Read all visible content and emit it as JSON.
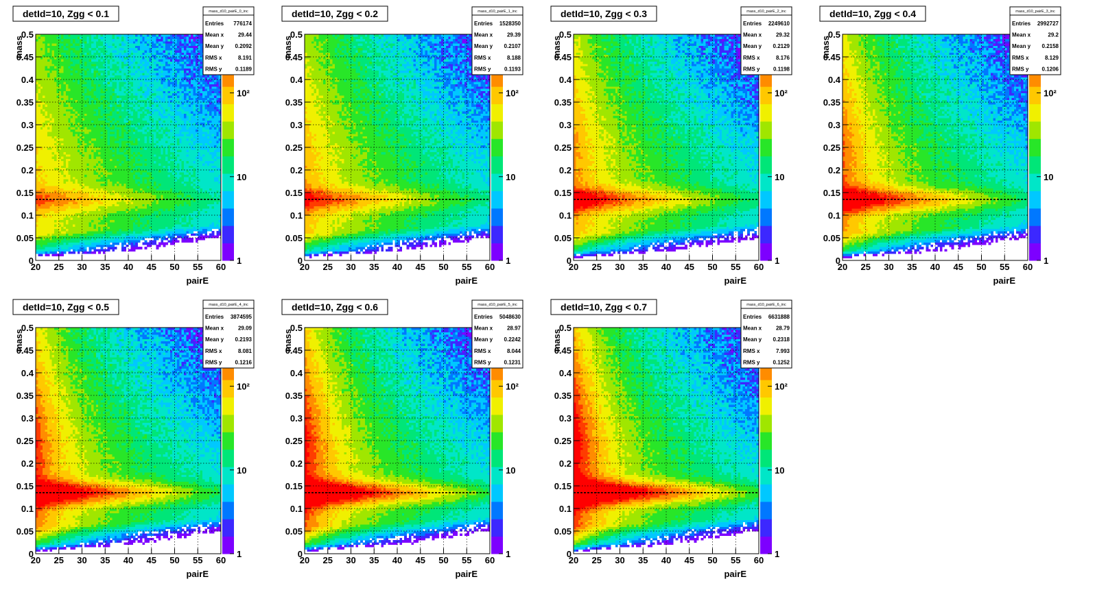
{
  "panel_grid": {
    "rows": 2,
    "cols": 4
  },
  "colors": {
    "palette": [
      "#7d00ff",
      "#3c28ff",
      "#0078ff",
      "#00c8ff",
      "#00e6c8",
      "#00e678",
      "#28e628",
      "#a0e600",
      "#f0f000",
      "#ffc800",
      "#ff8c00",
      "#ff3c00",
      "#ff0000"
    ],
    "empty_bin": "#ffffff",
    "reference_line": "#000000"
  },
  "chart_data": [
    {
      "type": "heatmap",
      "title": "detId=10, Zgg < 0.1",
      "xlabel": "pairE",
      "ylabel": "mass",
      "xlim": [
        20,
        60
      ],
      "ylim": [
        0,
        0.5
      ],
      "x_ticks": [
        "20",
        "25",
        "30",
        "35",
        "40",
        "45",
        "50",
        "55",
        "60"
      ],
      "y_ticks": [
        "0",
        "0.05",
        "0.1",
        "0.15",
        "0.2",
        "0.25",
        "0.3",
        "0.35",
        "0.4",
        "0.45",
        "0.5"
      ],
      "z_scale": "log",
      "z_ticks": [
        "1",
        "10",
        "10²"
      ],
      "reference_line_y": 0.135,
      "grid": true,
      "zgg_level": 0.1,
      "stats": {
        "name": "mass_d10_pairE_0_inc",
        "rows": [
          [
            "Entries",
            "776174"
          ],
          [
            "Mean x",
            "29.44"
          ],
          [
            "Mean y",
            "0.2092"
          ],
          [
            "RMS x",
            "8.191"
          ],
          [
            "RMS y",
            "0.1189"
          ]
        ]
      }
    },
    {
      "type": "heatmap",
      "title": "detId=10, Zgg < 0.2",
      "xlabel": "pairE",
      "ylabel": "mass",
      "xlim": [
        20,
        60
      ],
      "ylim": [
        0,
        0.5
      ],
      "x_ticks": [
        "20",
        "25",
        "30",
        "35",
        "40",
        "45",
        "50",
        "55",
        "60"
      ],
      "y_ticks": [
        "0",
        "0.05",
        "0.1",
        "0.15",
        "0.2",
        "0.25",
        "0.3",
        "0.35",
        "0.4",
        "0.45",
        "0.5"
      ],
      "z_scale": "log",
      "z_ticks": [
        "1",
        "10",
        "10²"
      ],
      "reference_line_y": 0.135,
      "grid": true,
      "zgg_level": 0.2,
      "stats": {
        "name": "mass_d10_pairE_1_inc",
        "rows": [
          [
            "Entries",
            "1528350"
          ],
          [
            "Mean x",
            "29.39"
          ],
          [
            "Mean y",
            "0.2107"
          ],
          [
            "RMS x",
            "8.188"
          ],
          [
            "RMS y",
            "0.1193"
          ]
        ]
      }
    },
    {
      "type": "heatmap",
      "title": "detId=10, Zgg < 0.3",
      "xlabel": "pairE",
      "ylabel": "mass",
      "xlim": [
        20,
        60
      ],
      "ylim": [
        0,
        0.5
      ],
      "x_ticks": [
        "20",
        "25",
        "30",
        "35",
        "40",
        "45",
        "50",
        "55",
        "60"
      ],
      "y_ticks": [
        "0",
        "0.05",
        "0.1",
        "0.15",
        "0.2",
        "0.25",
        "0.3",
        "0.35",
        "0.4",
        "0.45",
        "0.5"
      ],
      "z_scale": "log",
      "z_ticks": [
        "1",
        "10",
        "10²"
      ],
      "reference_line_y": 0.135,
      "grid": true,
      "zgg_level": 0.3,
      "stats": {
        "name": "mass_d10_pairE_2_inc",
        "rows": [
          [
            "Entries",
            "2249610"
          ],
          [
            "Mean x",
            "29.32"
          ],
          [
            "Mean y",
            "0.2129"
          ],
          [
            "RMS x",
            "8.176"
          ],
          [
            "RMS y",
            "0.1198"
          ]
        ]
      }
    },
    {
      "type": "heatmap",
      "title": "detId=10, Zgg < 0.4",
      "xlabel": "pairE",
      "ylabel": "mass",
      "xlim": [
        20,
        60
      ],
      "ylim": [
        0,
        0.5
      ],
      "x_ticks": [
        "20",
        "25",
        "30",
        "35",
        "40",
        "45",
        "50",
        "55",
        "60"
      ],
      "y_ticks": [
        "0",
        "0.05",
        "0.1",
        "0.15",
        "0.2",
        "0.25",
        "0.3",
        "0.35",
        "0.4",
        "0.45",
        "0.5"
      ],
      "z_scale": "log",
      "z_ticks": [
        "1",
        "10",
        "10²"
      ],
      "reference_line_y": 0.135,
      "grid": true,
      "zgg_level": 0.4,
      "stats": {
        "name": "mass_d10_pairE_3_inc",
        "rows": [
          [
            "Entries",
            "2992727"
          ],
          [
            "Mean x",
            "29.2"
          ],
          [
            "Mean y",
            "0.2158"
          ],
          [
            "RMS x",
            "8.129"
          ],
          [
            "RMS y",
            "0.1206"
          ]
        ]
      }
    },
    {
      "type": "heatmap",
      "title": "detId=10, Zgg < 0.5",
      "xlabel": "pairE",
      "ylabel": "mass",
      "xlim": [
        20,
        60
      ],
      "ylim": [
        0,
        0.5
      ],
      "x_ticks": [
        "20",
        "25",
        "30",
        "35",
        "40",
        "45",
        "50",
        "55",
        "60"
      ],
      "y_ticks": [
        "0",
        "0.05",
        "0.1",
        "0.15",
        "0.2",
        "0.25",
        "0.3",
        "0.35",
        "0.4",
        "0.45",
        "0.5"
      ],
      "z_scale": "log",
      "z_ticks": [
        "1",
        "10",
        "10²"
      ],
      "reference_line_y": 0.135,
      "grid": true,
      "zgg_level": 0.5,
      "stats": {
        "name": "mass_d10_pairE_4_inc",
        "rows": [
          [
            "Entries",
            "3874595"
          ],
          [
            "Mean x",
            "29.09"
          ],
          [
            "Mean y",
            "0.2193"
          ],
          [
            "RMS x",
            "8.081"
          ],
          [
            "RMS y",
            "0.1216"
          ]
        ]
      }
    },
    {
      "type": "heatmap",
      "title": "detId=10, Zgg < 0.6",
      "xlabel": "pairE",
      "ylabel": "mass",
      "xlim": [
        20,
        60
      ],
      "ylim": [
        0,
        0.5
      ],
      "x_ticks": [
        "20",
        "25",
        "30",
        "35",
        "40",
        "45",
        "50",
        "55",
        "60"
      ],
      "y_ticks": [
        "0",
        "0.05",
        "0.1",
        "0.15",
        "0.2",
        "0.25",
        "0.3",
        "0.35",
        "0.4",
        "0.45",
        "0.5"
      ],
      "z_scale": "log",
      "z_ticks": [
        "1",
        "10",
        "10²"
      ],
      "reference_line_y": 0.135,
      "grid": true,
      "zgg_level": 0.6,
      "stats": {
        "name": "mass_d10_pairE_5_inc",
        "rows": [
          [
            "Entries",
            "5048630"
          ],
          [
            "Mean x",
            "28.97"
          ],
          [
            "Mean y",
            "0.2242"
          ],
          [
            "RMS x",
            "8.044"
          ],
          [
            "RMS y",
            "0.1231"
          ]
        ]
      }
    },
    {
      "type": "heatmap",
      "title": "detId=10, Zgg < 0.7",
      "xlabel": "pairE",
      "ylabel": "mass",
      "xlim": [
        20,
        60
      ],
      "ylim": [
        0,
        0.5
      ],
      "x_ticks": [
        "20",
        "25",
        "30",
        "35",
        "40",
        "45",
        "50",
        "55",
        "60"
      ],
      "y_ticks": [
        "0",
        "0.05",
        "0.1",
        "0.15",
        "0.2",
        "0.25",
        "0.3",
        "0.35",
        "0.4",
        "0.45",
        "0.5"
      ],
      "z_scale": "log",
      "z_ticks": [
        "1",
        "10",
        "10²"
      ],
      "reference_line_y": 0.135,
      "grid": true,
      "zgg_level": 0.7,
      "stats": {
        "name": "mass_d10_pairE_6_inc",
        "rows": [
          [
            "Entries",
            "6631888"
          ],
          [
            "Mean x",
            "28.79"
          ],
          [
            "Mean y",
            "0.2318"
          ],
          [
            "RMS x",
            "7.993"
          ],
          [
            "RMS y",
            "0.1252"
          ]
        ]
      }
    }
  ]
}
